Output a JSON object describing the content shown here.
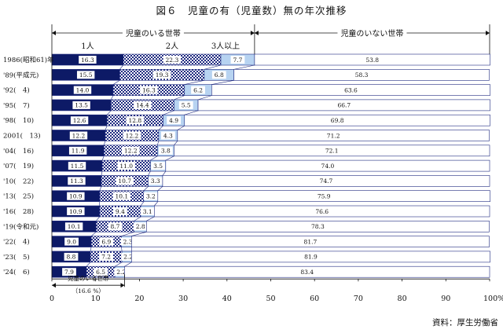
{
  "chart_data": {
    "type": "bar",
    "stacked": true,
    "orientation": "horizontal",
    "title": "図６　児童の有（児童数）無の年次推移",
    "categories": [
      "1986(昭和61)年",
      "'89(平成元)",
      "'92(　4)",
      "'95(　7)",
      "'98(　10)",
      "2001(　13)",
      "'04(　16)",
      "'07(　19)",
      "'10(　22)",
      "'13(　25)",
      "'16(　28)",
      "'19(令和元)",
      "'22(　4)",
      "'23(　5)",
      "'24(　6)"
    ],
    "series": [
      {
        "name": "1人",
        "values": [
          16.3,
          15.5,
          14.0,
          13.5,
          12.6,
          12.2,
          11.9,
          11.5,
          11.3,
          10.9,
          10.9,
          10.1,
          9.0,
          8.8,
          7.9
        ],
        "color": "#0d1a66"
      },
      {
        "name": "2人",
        "values": [
          22.3,
          19.3,
          16.3,
          14.4,
          12.8,
          12.2,
          12.2,
          11.0,
          10.7,
          10.1,
          9.4,
          8.7,
          6.9,
          7.2,
          6.5
        ],
        "color": "#1f2a80"
      },
      {
        "name": "3人以上",
        "values": [
          7.7,
          6.8,
          6.2,
          5.5,
          4.9,
          4.3,
          3.8,
          3.5,
          3.3,
          3.2,
          3.1,
          2.8,
          2.3,
          2.2,
          2.2
        ],
        "color": "#b7d3f1"
      },
      {
        "name": "児童のいない世帯",
        "values": [
          53.8,
          58.3,
          63.6,
          66.7,
          69.8,
          71.2,
          72.1,
          74.0,
          74.7,
          75.9,
          76.6,
          78.3,
          81.7,
          81.9,
          83.4
        ],
        "color": "#ffffff"
      }
    ],
    "xlim": [
      0,
      100
    ],
    "xticks": [
      0,
      10,
      20,
      30,
      40,
      50,
      60,
      70,
      80,
      90,
      100
    ],
    "xtick_suffix": "%",
    "header_with_children": "児童のいる世帯",
    "header_without_children": "児童のいない世帯",
    "legend": [
      "1人",
      "2人",
      "3人以上"
    ],
    "annotation": "児童のいる世帯",
    "annotation_value": "（16.6 %）",
    "annotation_x": 16.6,
    "source": "資料：厚生労働省"
  }
}
